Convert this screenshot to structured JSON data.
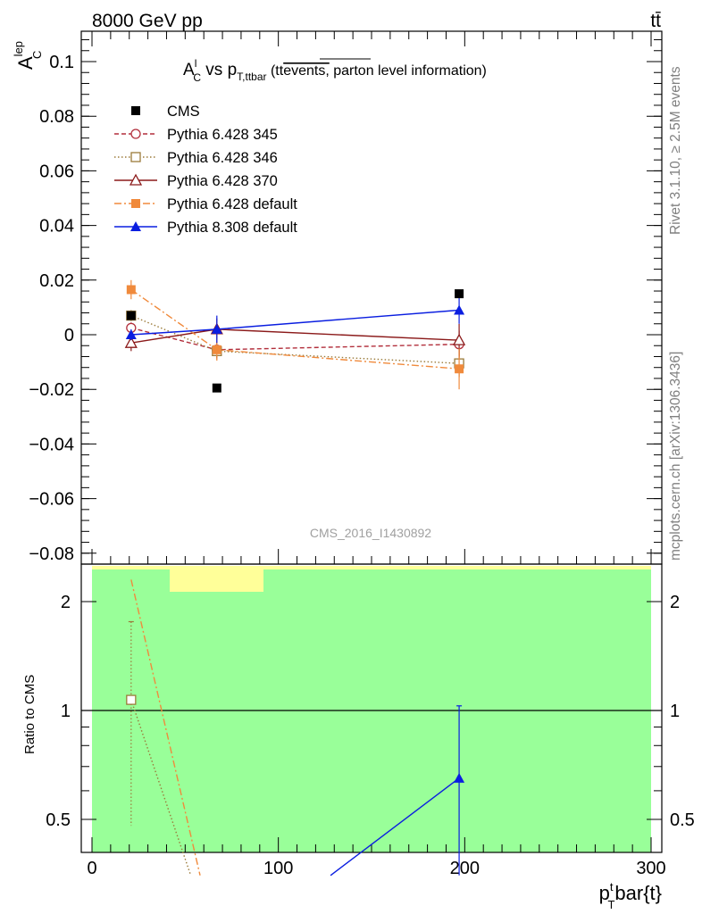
{
  "header": {
    "energy_label": "8000 GeV pp",
    "process_label": "tt̄"
  },
  "side_labels": {
    "rivet": "Rivet 3.1.10, ≥ 2.5M events",
    "mcplots": "mcplots.cern.ch [arXiv:1306.3436]"
  },
  "title": {
    "main": "A",
    "main_sup": "l",
    "main_sub": "C",
    "vs": " vs p",
    "vs_sub": "T,ttbar",
    "note_open": " (tt",
    "note_over": "events,",
    "note_rest": " parton level information)"
  },
  "watermark": "CMS_2016_I1430892",
  "chart_data": [
    {
      "type": "line",
      "panel": "main",
      "ylabel": "A",
      "ylabel_sup": "lep",
      "ylabel_sub": "C",
      "ylim": [
        -0.085,
        0.112
      ],
      "xlim": [
        -5,
        305
      ],
      "yticks": [
        {
          "v": 0.1,
          "label": "0.1"
        },
        {
          "v": 0.08,
          "label": "0.08"
        },
        {
          "v": 0.06,
          "label": "0.06"
        },
        {
          "v": 0.04,
          "label": "0.04"
        },
        {
          "v": 0.02,
          "label": "0.02"
        },
        {
          "v": 0,
          "label": "0"
        },
        {
          "v": -0.02,
          "label": "−0.02"
        },
        {
          "v": -0.04,
          "label": "−0.04"
        },
        {
          "v": -0.06,
          "label": "−0.06"
        },
        {
          "v": -0.08,
          "label": "−0.08"
        }
      ],
      "legend_position": "top-left",
      "series": [
        {
          "name": "CMS",
          "color": "#000000",
          "marker": "square-filled",
          "dash": "none",
          "line": false,
          "x": [
            21,
            67,
            197
          ],
          "y": [
            0.007,
            -0.0195,
            0.015
          ],
          "err": [
            0,
            0,
            0
          ]
        },
        {
          "name": "Pythia 6.428 345",
          "color": "#b22f3c",
          "marker": "circle-open",
          "dash": "5,3",
          "x": [
            21,
            67,
            197
          ],
          "y": [
            0.0025,
            -0.0055,
            -0.0035
          ],
          "err": [
            0.002,
            0.003,
            0.005
          ]
        },
        {
          "name": "Pythia 6.428 346",
          "color": "#9b7b3a",
          "marker": "square-open",
          "dash": "1.5,2.5",
          "x": [
            21,
            67,
            197
          ],
          "y": [
            0.007,
            -0.006,
            -0.0105
          ],
          "err": [
            0.002,
            0.003,
            0.005
          ]
        },
        {
          "name": "Pythia 6.428 370",
          "color": "#8b1a1a",
          "marker": "triangle-open",
          "dash": "none",
          "x": [
            21,
            67,
            197
          ],
          "y": [
            -0.003,
            0.002,
            -0.002
          ],
          "err": [
            0.003,
            0.004,
            0.006
          ]
        },
        {
          "name": "Pythia 6.428 default",
          "color": "#f08a3c",
          "marker": "square-filled",
          "dash": "8,3,2,3",
          "x": [
            21,
            67,
            197
          ],
          "y": [
            0.0165,
            -0.0055,
            -0.0125
          ],
          "err": [
            0.0035,
            0.004,
            0.0075
          ]
        },
        {
          "name": "Pythia 8.308 default",
          "color": "#0a1ee0",
          "marker": "triangle-filled",
          "dash": "none",
          "x": [
            21,
            67,
            197
          ],
          "y": [
            0.0,
            0.002,
            0.009
          ],
          "err": [
            0.002,
            0.005,
            0.005
          ]
        }
      ]
    },
    {
      "type": "line",
      "panel": "ratio",
      "ylabel": "Ratio to CMS",
      "xlabel": "p",
      "xlabel_sup": "t",
      "xlabel_sub": "T",
      "xlabel_rest": "bar{t}",
      "ylim": [
        0.35,
        2.3
      ],
      "xlim": [
        -5,
        305
      ],
      "yticks": [
        {
          "v": 2,
          "label": "2"
        },
        {
          "v": 1,
          "label": "1"
        },
        {
          "v": 0.5,
          "label": "0.5"
        }
      ],
      "xticks": [
        {
          "v": 0,
          "label": "0"
        },
        {
          "v": 100,
          "label": "100"
        },
        {
          "v": 200,
          "label": "200"
        },
        {
          "v": 300,
          "label": "300"
        }
      ],
      "reference": 1,
      "band_color": "#99ff99",
      "band_color_yellow": "#ffff99",
      "series": [
        {
          "name": "Pythia 6.428 346",
          "color": "#9b7b3a",
          "dash": "1.5,2.5",
          "marker": "square-open",
          "x": [
            21,
            53
          ],
          "y": [
            1.07,
            0.35
          ],
          "err_low": 0.48,
          "err_high": 1.76
        },
        {
          "name": "Pythia 6.428 default",
          "color": "#f08a3c",
          "dash": "8,3,2,3",
          "marker": "none",
          "x": [
            21,
            58
          ],
          "y": [
            2.3,
            0.35
          ]
        },
        {
          "name": "Pythia 8.308 default",
          "color": "#0a1ee0",
          "dash": "none",
          "marker": "triangle-filled",
          "x": [
            128,
            197
          ],
          "y": [
            0.35,
            0.65
          ],
          "err_low": 0.35,
          "err_high": 1.03
        }
      ]
    }
  ]
}
